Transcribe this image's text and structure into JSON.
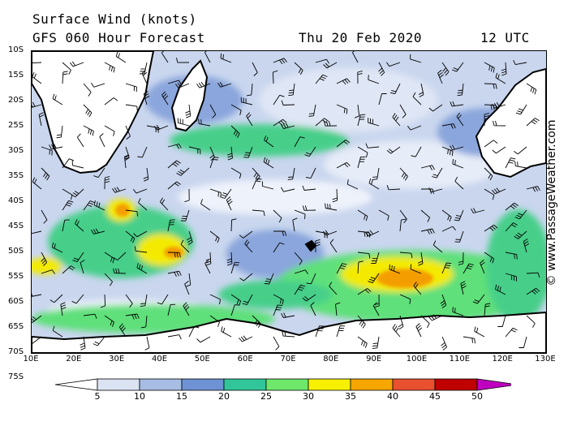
{
  "header": {
    "title": "Surface Wind (knots)",
    "subtitle": "GFS 060 Hour Forecast",
    "date": "Thu 20 Feb 2020",
    "time": "12 UTC"
  },
  "latitude_labels": [
    "10S",
    "15S",
    "20S",
    "25S",
    "30S",
    "35S",
    "40S",
    "45S",
    "50S",
    "55S",
    "60S",
    "65S",
    "70S",
    "75S"
  ],
  "longitude_labels": [
    "10E",
    "20E",
    "30E",
    "40E",
    "50E",
    "60E",
    "70E",
    "80E",
    "90E",
    "100E",
    "110E",
    "120E",
    "130E"
  ],
  "credit": "© www.PassageWeather.com",
  "colorbar": {
    "labels": [
      "5",
      "10",
      "15",
      "20",
      "25",
      "30",
      "35",
      "40",
      "45",
      "50"
    ],
    "colors": [
      "#ffffff",
      "#dbe3f3",
      "#a8bde3",
      "#6e92d3",
      "#30c69a",
      "#6ee86a",
      "#f7f000",
      "#f7a600",
      "#e85030",
      "#c00000",
      "#c000c0"
    ]
  },
  "layers": {
    "land_color": "#ffffff",
    "ocean_base_color": "#c9d6ee",
    "coastline_color": "#000000",
    "wind_barb_color": "#000000"
  }
}
